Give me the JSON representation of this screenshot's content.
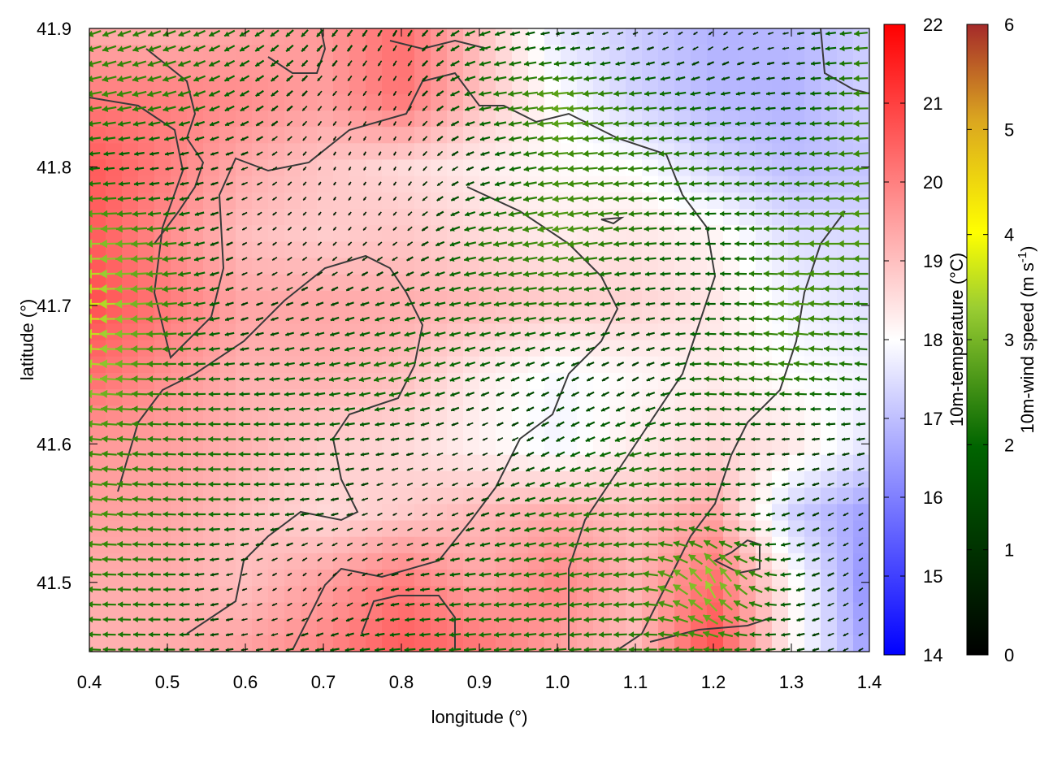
{
  "chart_data": {
    "type": "heatmap",
    "title": "",
    "xlabel": "longitude (°)",
    "ylabel": "latitude (°)",
    "xlim": [
      0.4,
      1.4
    ],
    "ylim": [
      41.45,
      41.9
    ],
    "x_ticks": [
      "0.4",
      "0.5",
      "0.6",
      "0.7",
      "0.8",
      "0.9",
      "1.0",
      "1.1",
      "1.2",
      "1.3",
      "1.4"
    ],
    "y_ticks": [
      "41.5",
      "41.6",
      "41.7",
      "41.8",
      "41.9"
    ],
    "x_tick_values": [
      0.4,
      0.5,
      0.6,
      0.7,
      0.8,
      0.9,
      1.0,
      1.1,
      1.2,
      1.3,
      1.4
    ],
    "y_tick_values": [
      41.5,
      41.6,
      41.7,
      41.8,
      41.9
    ],
    "grid": false,
    "temperature_colorbar": {
      "label": "10m-temperature (°C)",
      "range": [
        14,
        22
      ],
      "ticks": [
        "14",
        "15",
        "16",
        "17",
        "18",
        "19",
        "20",
        "21",
        "22"
      ],
      "tick_values": [
        14,
        15,
        16,
        17,
        18,
        19,
        20,
        21,
        22
      ],
      "colors": [
        "#0000ff",
        "#ffffff",
        "#ff0000"
      ]
    },
    "wind_colorbar": {
      "label_main": "10m-wind speed (m s",
      "label_sup": "-1",
      "label_end": ")",
      "range": [
        0,
        6
      ],
      "ticks": [
        "0",
        "1",
        "2",
        "3",
        "4",
        "5",
        "6"
      ],
      "tick_values": [
        0,
        1,
        2,
        3,
        4,
        5,
        6
      ],
      "colors": [
        "#000000",
        "#006400",
        "#ffff00",
        "#a52a2a"
      ]
    },
    "temperature_field": {
      "x": [
        0.4,
        0.5,
        0.6,
        0.7,
        0.8,
        0.9,
        1.0,
        1.1,
        1.2,
        1.3,
        1.4
      ],
      "y": [
        41.9,
        41.85,
        41.8,
        41.75,
        41.7,
        41.65,
        41.6,
        41.55,
        41.5,
        41.45
      ],
      "values": [
        [
          19.3,
          19.2,
          19.4,
          19.6,
          20.3,
          19.0,
          17.6,
          17.2,
          16.8,
          16.9,
          17.2
        ],
        [
          20.1,
          20.0,
          19.8,
          19.5,
          20.2,
          19.0,
          18.0,
          17.3,
          16.9,
          16.8,
          17.3
        ],
        [
          20.6,
          20.0,
          19.3,
          18.9,
          18.6,
          18.3,
          18.1,
          18.0,
          17.4,
          17.0,
          17.1
        ],
        [
          20.6,
          19.8,
          19.0,
          18.8,
          18.9,
          18.6,
          18.3,
          18.4,
          18.2,
          17.5,
          17.4
        ],
        [
          20.8,
          20.1,
          19.4,
          19.4,
          19.3,
          19.1,
          18.8,
          18.7,
          18.4,
          17.8,
          17.5
        ],
        [
          20.3,
          19.7,
          19.2,
          19.2,
          19.0,
          18.3,
          17.9,
          18.1,
          18.3,
          18.0,
          17.8
        ],
        [
          19.6,
          19.5,
          19.2,
          18.8,
          18.6,
          18.2,
          17.8,
          18.3,
          18.6,
          18.4,
          17.6
        ],
        [
          19.5,
          19.4,
          19.0,
          18.6,
          18.8,
          19.1,
          19.3,
          19.0,
          19.4,
          17.3,
          16.5
        ],
        [
          19.3,
          19.3,
          19.0,
          19.5,
          20.1,
          19.4,
          19.9,
          19.2,
          20.3,
          18.2,
          16.2
        ],
        [
          19.2,
          19.3,
          19.5,
          19.9,
          20.6,
          20.2,
          19.5,
          19.0,
          20.8,
          18.2,
          16.5
        ]
      ]
    },
    "wind_field": {
      "x": [
        0.4,
        0.5,
        0.6,
        0.7,
        0.8,
        0.9,
        1.0,
        1.1,
        1.2,
        1.3,
        1.4
      ],
      "y": [
        41.9,
        41.85,
        41.8,
        41.75,
        41.7,
        41.65,
        41.6,
        41.55,
        41.5,
        41.45
      ],
      "speed": [
        [
          2.4,
          2.2,
          1.8,
          1.4,
          1.0,
          1.8,
          1.2,
          0.6,
          0.5,
          0.8,
          2.4
        ],
        [
          2.6,
          2.4,
          1.6,
          0.8,
          0.6,
          2.0,
          3.0,
          2.2,
          1.6,
          1.4,
          2.6
        ],
        [
          1.8,
          1.2,
          1.0,
          0.4,
          0.5,
          1.2,
          2.6,
          2.4,
          2.2,
          2.0,
          2.6
        ],
        [
          3.4,
          2.4,
          0.6,
          0.5,
          0.6,
          2.2,
          2.8,
          2.2,
          1.6,
          2.6,
          2.8
        ],
        [
          4.0,
          2.6,
          1.0,
          1.2,
          1.6,
          2.0,
          2.2,
          1.4,
          1.6,
          2.8,
          2.2
        ],
        [
          3.6,
          2.2,
          1.6,
          1.8,
          2.2,
          1.6,
          1.2,
          1.0,
          2.2,
          2.4,
          2.0
        ],
        [
          2.6,
          2.2,
          2.0,
          1.6,
          1.2,
          0.6,
          1.4,
          2.0,
          1.6,
          1.0,
          1.2
        ],
        [
          2.8,
          2.2,
          1.8,
          1.2,
          0.5,
          1.2,
          2.2,
          2.2,
          1.8,
          1.2,
          0.6
        ],
        [
          2.4,
          2.0,
          0.6,
          0.4,
          1.2,
          2.0,
          2.2,
          2.4,
          3.6,
          1.6,
          0.5
        ],
        [
          2.2,
          1.8,
          1.0,
          1.4,
          1.8,
          2.0,
          2.0,
          2.2,
          2.4,
          1.2,
          0.6
        ]
      ],
      "direction_deg": [
        [
          200,
          200,
          210,
          230,
          240,
          200,
          190,
          200,
          220,
          190,
          185
        ],
        [
          190,
          195,
          210,
          230,
          240,
          190,
          185,
          185,
          190,
          185,
          180
        ],
        [
          185,
          190,
          200,
          240,
          240,
          200,
          185,
          185,
          185,
          185,
          185
        ],
        [
          180,
          185,
          210,
          230,
          220,
          190,
          190,
          185,
          180,
          180,
          180
        ],
        [
          180,
          185,
          200,
          200,
          195,
          190,
          185,
          190,
          180,
          175,
          180
        ],
        [
          175,
          180,
          185,
          190,
          195,
          200,
          205,
          210,
          175,
          175,
          175
        ],
        [
          175,
          178,
          180,
          185,
          190,
          205,
          210,
          195,
          180,
          185,
          190
        ],
        [
          175,
          178,
          182,
          190,
          210,
          200,
          190,
          185,
          180,
          200,
          210
        ],
        [
          178,
          180,
          200,
          230,
          190,
          185,
          190,
          185,
          110,
          190,
          220
        ],
        [
          178,
          180,
          190,
          190,
          185,
          185,
          185,
          180,
          180,
          190,
          210
        ]
      ]
    }
  }
}
